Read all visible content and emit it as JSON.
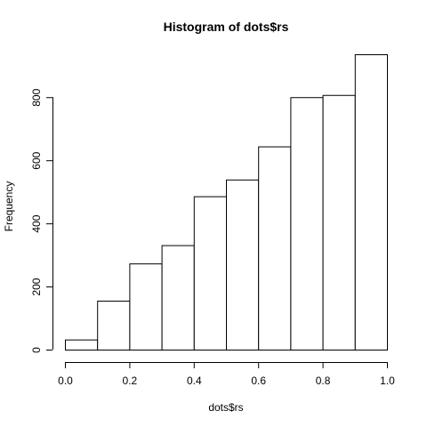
{
  "chart_data": {
    "type": "bar",
    "title": "Histogram of dots$rs",
    "xlabel": "dots$rs",
    "ylabel": "Frequency",
    "bins": [
      {
        "start": 0.0,
        "end": 0.1,
        "count": 32
      },
      {
        "start": 0.1,
        "end": 0.2,
        "count": 155
      },
      {
        "start": 0.2,
        "end": 0.3,
        "count": 273
      },
      {
        "start": 0.3,
        "end": 0.4,
        "count": 331
      },
      {
        "start": 0.4,
        "end": 0.5,
        "count": 486
      },
      {
        "start": 0.5,
        "end": 0.6,
        "count": 539
      },
      {
        "start": 0.6,
        "end": 0.7,
        "count": 644
      },
      {
        "start": 0.7,
        "end": 0.8,
        "count": 800
      },
      {
        "start": 0.8,
        "end": 0.9,
        "count": 807
      },
      {
        "start": 0.9,
        "end": 1.0,
        "count": 936
      }
    ],
    "xlim": [
      0.0,
      1.0
    ],
    "ylim": [
      0,
      936
    ],
    "x_ticks": [
      0.0,
      0.2,
      0.4,
      0.6,
      0.8,
      1.0
    ],
    "x_tick_labels": [
      "0.0",
      "0.2",
      "0.4",
      "0.6",
      "0.8",
      "1.0"
    ],
    "y_ticks": [
      0,
      200,
      400,
      600,
      800
    ],
    "y_tick_labels": [
      "0",
      "200",
      "400",
      "600",
      "800"
    ],
    "grid": false,
    "colors": {
      "bar_fill": "#ffffff",
      "bar_stroke": "#000000"
    }
  }
}
